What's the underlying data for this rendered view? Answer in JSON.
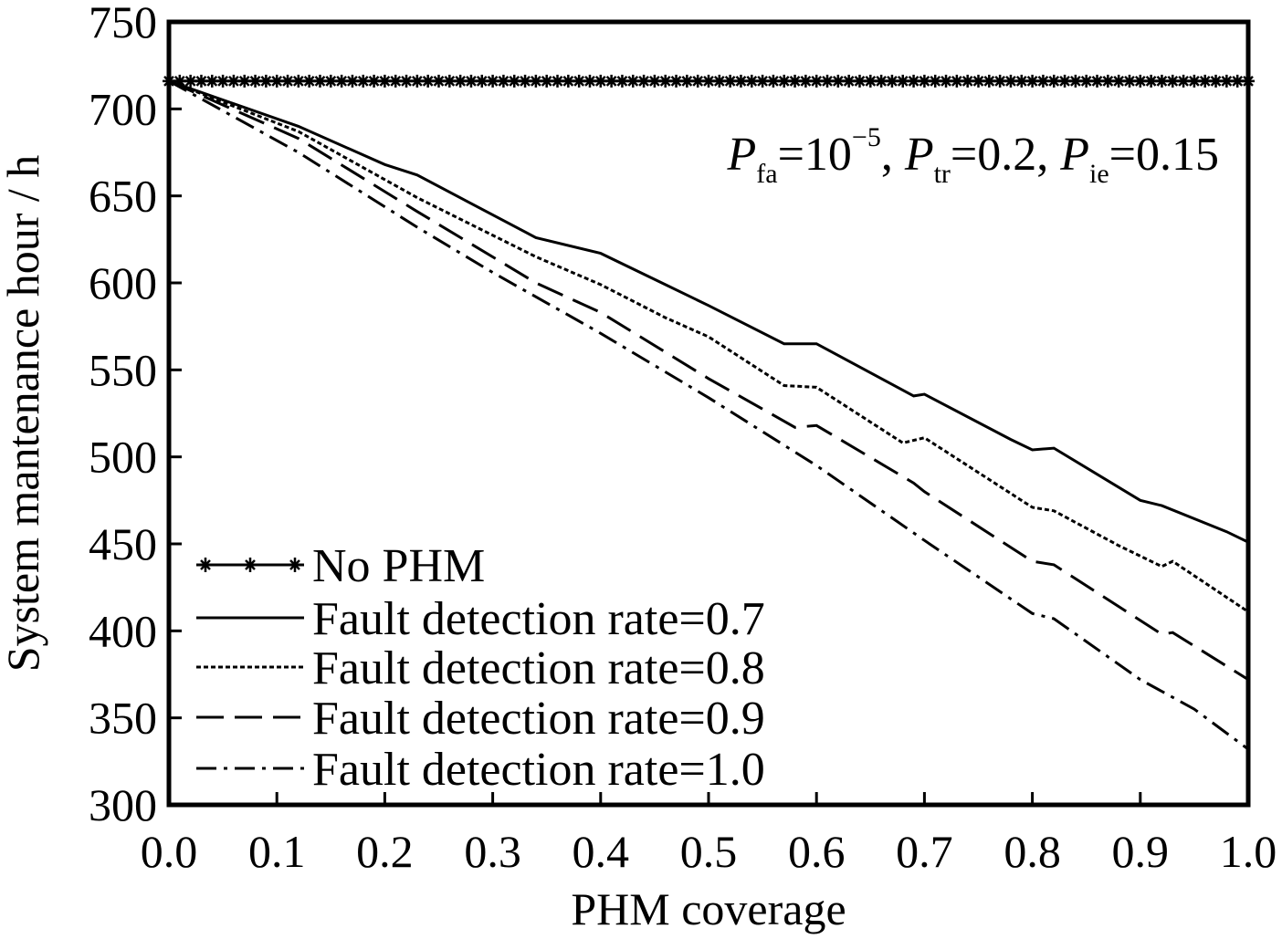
{
  "chart_data": {
    "type": "line",
    "title": "",
    "xlabel": "PHM coverage",
    "ylabel": "System mantenance hour / h",
    "xlim": [
      0.0,
      1.0
    ],
    "ylim": [
      300,
      750
    ],
    "xticks": [
      "0.0",
      "0.1",
      "0.2",
      "0.3",
      "0.4",
      "0.5",
      "0.6",
      "0.7",
      "0.8",
      "0.9",
      "1.0"
    ],
    "yticks": [
      "300",
      "350",
      "400",
      "450",
      "500",
      "550",
      "600",
      "650",
      "700",
      "750"
    ],
    "grid": false,
    "legend_position": "bottom-left",
    "annotation": {
      "p1": "P",
      "s1": "fa",
      "eq1": "=10",
      "sup1": "−5",
      "sep1": ", ",
      "p2": "P",
      "s2": "tr",
      "eq2": "=0.2",
      "sep2": ", ",
      "p3": "P",
      "s3": "ie",
      "eq3": "=0.15"
    },
    "series": [
      {
        "name": "No PHM",
        "style": "solid-marker",
        "x": [
          0.0,
          1.0
        ],
        "values": [
          716,
          716
        ]
      },
      {
        "name": "Fault detection rate=0.7",
        "style": "solid",
        "x": [
          0.0,
          0.12,
          0.2,
          0.23,
          0.34,
          0.4,
          0.46,
          0.5,
          0.57,
          0.6,
          0.69,
          0.7,
          0.78,
          0.8,
          0.82,
          0.9,
          0.92,
          0.98,
          1.0
        ],
        "values": [
          716,
          690,
          668,
          662,
          626,
          617,
          599,
          587,
          565,
          565,
          535,
          536,
          510,
          504,
          505,
          475,
          472,
          457,
          451
        ]
      },
      {
        "name": "Fault detection rate=0.8",
        "style": "dotted",
        "x": [
          0.0,
          0.12,
          0.23,
          0.34,
          0.4,
          0.46,
          0.5,
          0.57,
          0.6,
          0.68,
          0.7,
          0.8,
          0.82,
          0.88,
          0.92,
          0.93,
          1.0
        ],
        "values": [
          716,
          687,
          649,
          615,
          599,
          580,
          569,
          541,
          540,
          508,
          511,
          471,
          469,
          449,
          437,
          440,
          411
        ]
      },
      {
        "name": "Fault detection rate=0.9",
        "style": "dashed",
        "x": [
          0.0,
          0.12,
          0.23,
          0.34,
          0.4,
          0.5,
          0.58,
          0.6,
          0.69,
          0.7,
          0.8,
          0.82,
          0.92,
          0.93,
          1.0
        ],
        "values": [
          716,
          683,
          641,
          600,
          583,
          545,
          517,
          518,
          485,
          480,
          440,
          438,
          398,
          399,
          372
        ]
      },
      {
        "name": "Fault detection rate=1.0",
        "style": "dashdot",
        "x": [
          0.0,
          0.12,
          0.23,
          0.3,
          0.4,
          0.5,
          0.6,
          0.7,
          0.8,
          0.82,
          0.9,
          0.95,
          1.0
        ],
        "values": [
          716,
          675,
          632,
          606,
          571,
          534,
          495,
          452,
          410,
          407,
          372,
          355,
          332
        ]
      }
    ]
  }
}
